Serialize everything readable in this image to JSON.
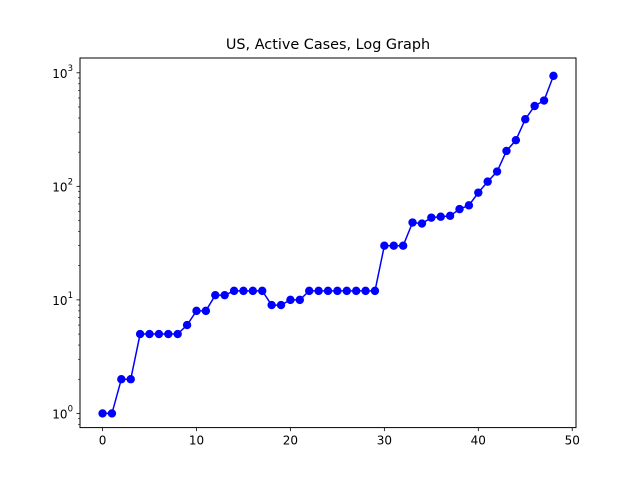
{
  "chart_data": {
    "type": "line",
    "title": "US, Active Cases, Log Graph",
    "xlabel": "",
    "ylabel": "",
    "yscale": "log",
    "xlim": [
      -2.4,
      50.4
    ],
    "ylim": [
      0.75,
      1350
    ],
    "xticks": [
      0,
      10,
      20,
      30,
      40,
      50
    ],
    "yticks": [
      {
        "value": 1,
        "base": "10",
        "exp": "0"
      },
      {
        "value": 10,
        "base": "10",
        "exp": "1"
      },
      {
        "value": 100,
        "base": "10",
        "exp": "2"
      },
      {
        "value": 1000,
        "base": "10",
        "exp": "3"
      }
    ],
    "grid": false,
    "legend": "none",
    "series": [
      {
        "color": "#0000ff",
        "marker": "circle",
        "x": [
          0,
          1,
          2,
          3,
          4,
          5,
          6,
          7,
          8,
          9,
          10,
          11,
          12,
          13,
          14,
          15,
          16,
          17,
          18,
          19,
          20,
          21,
          22,
          23,
          24,
          25,
          26,
          27,
          28,
          29,
          30,
          31,
          32,
          33,
          34,
          35,
          36,
          37,
          38,
          39,
          40,
          41,
          42,
          43,
          44,
          45,
          46,
          47,
          48
        ],
        "values": [
          1,
          1,
          2,
          2,
          5,
          5,
          5,
          5,
          5,
          6,
          8,
          8,
          11,
          11,
          12,
          12,
          12,
          12,
          9,
          9,
          10,
          10,
          12,
          12,
          12,
          12,
          12,
          12,
          12,
          12,
          30,
          30,
          30,
          48,
          47,
          53,
          54,
          55,
          63,
          68,
          88,
          110,
          135,
          205,
          255,
          390,
          510,
          570,
          940
        ]
      }
    ]
  }
}
